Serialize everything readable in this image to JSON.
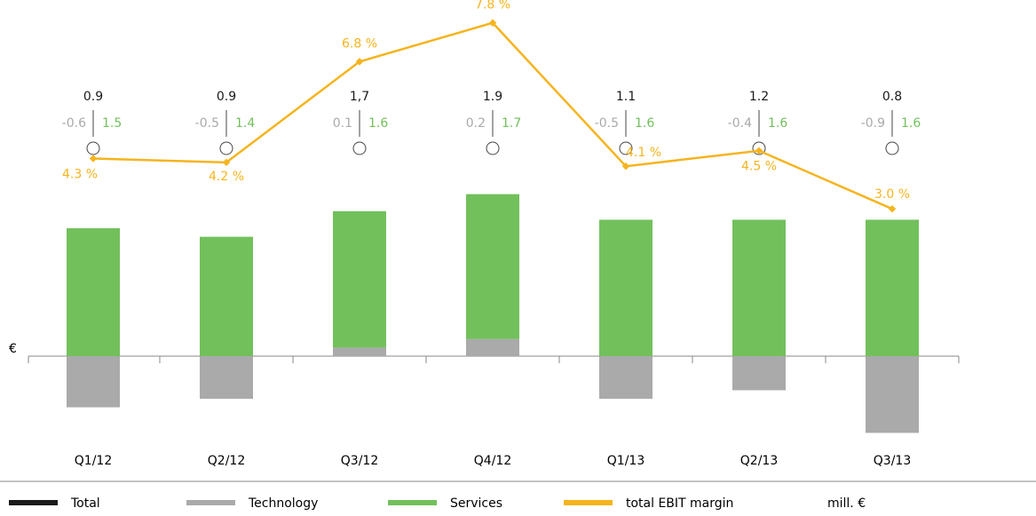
{
  "chart_data": {
    "type": "bar",
    "categories": [
      "Q1/12",
      "Q2/12",
      "Q3/12",
      "Q4/12",
      "Q1/13",
      "Q2/13",
      "Q3/13"
    ],
    "series": [
      {
        "name": "Technology",
        "color": "#aaaaaa",
        "values": [
          -0.6,
          -0.5,
          0.1,
          0.2,
          -0.5,
          -0.4,
          -0.9
        ]
      },
      {
        "name": "Services",
        "color": "#72c05b",
        "values": [
          1.5,
          1.4,
          1.6,
          1.7,
          1.6,
          1.6,
          1.6
        ]
      },
      {
        "name": "total EBIT margin",
        "color": "#f5b41e",
        "type": "line",
        "axis": "y2",
        "values": [
          4.3,
          4.2,
          6.8,
          7.8,
          4.1,
          4.5,
          3.0
        ],
        "value_labels": [
          "4.3 %",
          "4.2 %",
          "6.8 %",
          "7.8 %",
          "4.1 %",
          "4.5 %",
          "3.0 %"
        ]
      }
    ],
    "total": {
      "name": "Total",
      "color": "#1a1a1a",
      "values": [
        0.9,
        0.9,
        1.7,
        1.9,
        1.1,
        1.2,
        0.8
      ],
      "value_labels": [
        "0.9",
        "0.9",
        "1,7",
        "1.9",
        "1.1",
        "1.2",
        "0.8"
      ]
    },
    "y_unit": "€",
    "unit_label": "mill. €",
    "ylim": [
      -1,
      4
    ],
    "y2lim": [
      -3,
      8
    ]
  }
}
